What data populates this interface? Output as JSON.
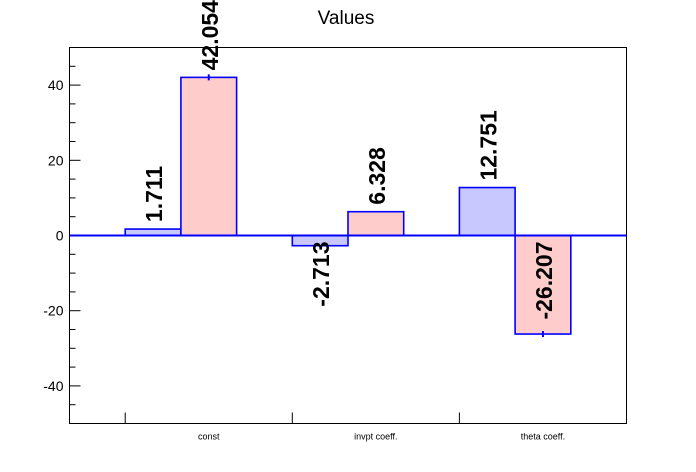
{
  "chart_data": {
    "type": "bar",
    "title": "Values",
    "xlabel": "",
    "ylabel": "",
    "ylim": [
      -50,
      50
    ],
    "yticks": [
      -40,
      -20,
      0,
      20,
      40
    ],
    "categories": [
      "const",
      "invpt coeff.",
      "theta coeff."
    ],
    "series": [
      {
        "color": "#c8c8ff",
        "values": [
          1.711,
          -2.713,
          12.751
        ],
        "labels": [
          "1.711",
          "-2.713",
          "12.751"
        ]
      },
      {
        "color": "#ffcccc",
        "values": [
          42.054,
          6.328,
          -26.207
        ],
        "labels": [
          "42.054",
          "6.328",
          "-26.207"
        ],
        "errors": [
          0.8,
          0,
          0.8
        ]
      }
    ],
    "edge_color": "#0000ff",
    "zero_line": true,
    "grid": false,
    "legend": "none"
  }
}
